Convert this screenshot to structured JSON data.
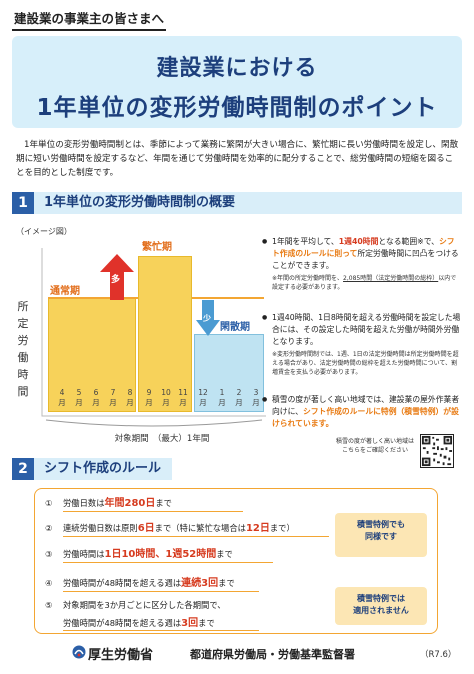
{
  "header": {
    "top_label": "建設業の事業主の皆さまへ",
    "title_line1": "建設業における",
    "title_line2": "1年単位の変形労働時間制のポイント"
  },
  "intro": "1年単位の変形労働時間制とは、季節によって業務に繁閑が大きい場合に、繁忙期に長い労働時間を設定し、閑散期に短い労働時間を設定するなど、年間を通じて労働時間を効率的に配分することで、総労働時間の短縮を図ることを目的とした制度です。",
  "section1": {
    "num": "1",
    "title": "1年単位の変形労働時間制の概要",
    "image_label": "（イメージ図）",
    "ylabel_chars": [
      "所",
      "定",
      "労",
      "働",
      "時",
      "間"
    ],
    "xlabel": "対象期間　（最大）1年間",
    "periods": {
      "normal": "通常期",
      "busy": "繁忙期",
      "slow": "閑散期"
    },
    "more_label": "多",
    "less_label": "少",
    "months": [
      "4\n月",
      "5\n月",
      "6\n月",
      "7\n月",
      "8\n月",
      "9\n月",
      "10\n月",
      "11\n月",
      "12\n月",
      "1\n月",
      "2\n月",
      "3\n月"
    ],
    "notes": [
      {
        "pre": "1年間を平均して、",
        "hl1": "1週40時間",
        "mid": "となる範囲",
        "fn": "※",
        "post1": "で、",
        "hl2": "シフト作成のルールに則って",
        "post2": "所定労働時間に凹凸をつけることができます。",
        "sub_pre": "※年間の所定労働時間を、",
        "sub_ul": "2,085時間（法定労働時間の総枠）",
        "sub_post": "以内で設定する必要があります。"
      },
      {
        "text": "1週40時間、1日8時間を超える労働時間を設定した場合には、その設定した時間を超えた労働が時間外労働となります。",
        "sub": "※変形労働時間制では、1週、1日の法定労働時間は所定労働時間を超える場合があり、法定労働時間の総枠を超えた労働時間について、割増賃金を支払う必要があります。"
      },
      {
        "pre": "積雪の度が著しく高い地域では、建設業の屋外作業者向けに、",
        "hl": "シフト作成のルールに特例（積雪特例）が設けられています。"
      }
    ],
    "qr_text": "積雪の度が著しく高い地域はこちらをご確認ください"
  },
  "section2": {
    "num": "2",
    "title": "シフト作成のルール",
    "rules": [
      {
        "num": "①",
        "pre": "労働日数は",
        "hl": "年間280日",
        "post": "まで"
      },
      {
        "num": "②",
        "pre": "連続労働日数は原則",
        "hl": "6日",
        "mid": "まで（特に繁忙な場合は",
        "hl2": "12日",
        "post": "まで）"
      },
      {
        "num": "③",
        "pre": "労働時間は",
        "hl": "1日10時間、1週52時間",
        "post": "まで"
      },
      {
        "num": "④",
        "pre": "労働時間が48時間を超える週は",
        "hl": "連続3回",
        "post": "まで"
      },
      {
        "num": "⑤",
        "pre": "対象期間を3か月ごとに区分した各期間で、",
        "hl": "",
        "post": ""
      },
      {
        "num": "",
        "pre": "労働時間が48時間を超える週は",
        "hl": "3回",
        "post": "まで"
      }
    ],
    "tag1": "積雪特例でも\n同様です",
    "tag2": "積雪特例では\n適用されません"
  },
  "footer": {
    "ministry": "厚生労働省",
    "org": "都道府県労働局・労働基準監督署",
    "date": "（R7.6）"
  },
  "colors": {
    "navy": "#1d3f7c",
    "accent_red": "#d63b1f",
    "accent_orange": "#e87a12",
    "bar_yellow": "#f7d25a",
    "bar_blue": "#bfe3f2"
  }
}
